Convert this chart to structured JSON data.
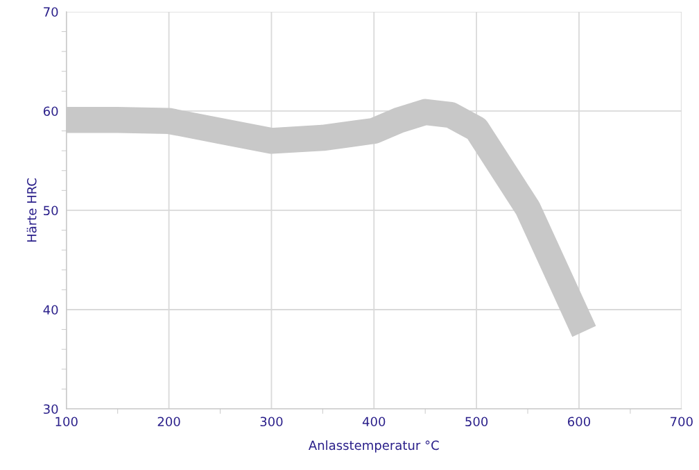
{
  "chart_data": {
    "type": "line",
    "xlabel": "Anlasstemperatur °C",
    "ylabel": "Härte HRC",
    "x": [
      100,
      150,
      200,
      250,
      300,
      350,
      400,
      425,
      450,
      475,
      500,
      550,
      605
    ],
    "series": [
      {
        "color": "#c8c8c8",
        "values": [
          59.1,
          59.1,
          59.0,
          58.0,
          57.0,
          57.3,
          58.0,
          59.1,
          59.9,
          59.6,
          58.2,
          50.2,
          37.8
        ]
      }
    ],
    "xlim": [
      100,
      700
    ],
    "ylim": [
      30,
      70
    ],
    "xticks": [
      100,
      {
        "value": 150,
        "label": null
      },
      200,
      {
        "value": 250,
        "label": null
      },
      300,
      {
        "value": 350,
        "label": null
      },
      400,
      {
        "value": 450,
        "label": null
      },
      500,
      {
        "value": 550,
        "label": null
      },
      600,
      {
        "value": 650,
        "label": null
      },
      700
    ],
    "yticks": [
      30,
      {
        "value": 32,
        "label": null
      },
      {
        "value": 34,
        "label": null
      },
      {
        "value": 36,
        "label": null
      },
      {
        "value": 38,
        "label": null
      },
      40,
      {
        "value": 42,
        "label": null
      },
      {
        "value": 44,
        "label": null
      },
      {
        "value": 46,
        "label": null
      },
      {
        "value": 48,
        "label": null
      },
      50,
      {
        "value": 52,
        "label": null
      },
      {
        "value": 54,
        "label": null
      },
      {
        "value": 56,
        "label": null
      },
      {
        "value": 58,
        "label": null
      },
      60,
      {
        "value": 62,
        "label": null
      },
      {
        "value": 64,
        "label": null
      },
      {
        "value": 66,
        "label": null
      },
      {
        "value": 68,
        "label": null
      },
      70
    ],
    "grid": true,
    "marker": "none",
    "line_style": "solid"
  }
}
